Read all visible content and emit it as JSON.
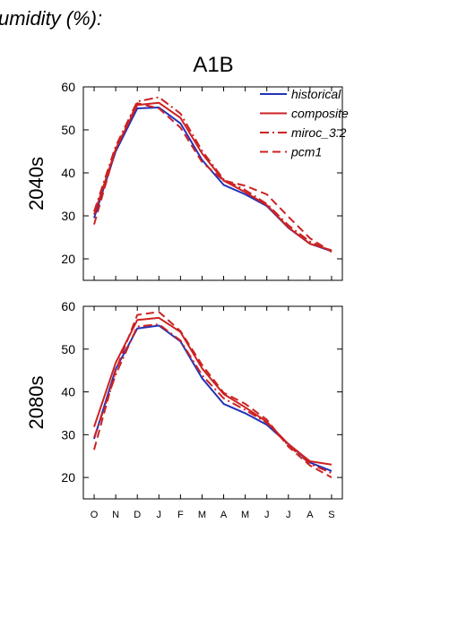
{
  "header": {
    "title_fragment": "umidity (%):"
  },
  "scenario": "A1B",
  "legend": [
    {
      "name": "historical",
      "color": "#2233bb",
      "dash": "solid"
    },
    {
      "name": "composite",
      "color": "#cc2222",
      "dash": "solid"
    },
    {
      "name": "miroc_3.2",
      "color": "#cc2222",
      "dash": "dashdot"
    },
    {
      "name": "pcm1",
      "color": "#cc2222",
      "dash": "dashed"
    }
  ],
  "chart_data": [
    {
      "type": "line",
      "panel_label": "2040s",
      "categories": [
        "O",
        "N",
        "D",
        "J",
        "F",
        "M",
        "A",
        "M",
        "J",
        "J",
        "A",
        "S"
      ],
      "ylim": [
        15,
        60
      ],
      "yticks": [
        20,
        30,
        40,
        50,
        60
      ],
      "series": [
        {
          "name": "historical",
          "values": [
            29.5,
            45.0,
            55.0,
            55.2,
            51.5,
            43.0,
            37.2,
            35.0,
            32.3,
            27.2,
            23.5,
            21.8
          ]
        },
        {
          "name": "composite",
          "values": [
            30.3,
            45.5,
            55.8,
            56.3,
            52.8,
            44.5,
            38.2,
            35.5,
            32.5,
            27.3,
            23.5,
            22.0
          ]
        },
        {
          "name": "miroc_3.2",
          "values": [
            31.0,
            46.2,
            56.6,
            57.6,
            53.8,
            45.1,
            38.5,
            36.0,
            32.8,
            27.8,
            24.0,
            21.8
          ]
        },
        {
          "name": "pcm1",
          "values": [
            28.0,
            45.5,
            56.2,
            55.0,
            50.5,
            42.5,
            38.2,
            37.0,
            35.0,
            29.8,
            24.8,
            21.6
          ]
        }
      ]
    },
    {
      "type": "line",
      "panel_label": "2080s",
      "categories": [
        "O",
        "N",
        "D",
        "J",
        "F",
        "M",
        "A",
        "M",
        "J",
        "J",
        "A",
        "S"
      ],
      "ylim": [
        15,
        60
      ],
      "yticks": [
        20,
        30,
        40,
        50,
        60
      ],
      "series": [
        {
          "name": "historical",
          "values": [
            29.0,
            45.3,
            54.8,
            55.5,
            51.8,
            43.2,
            37.2,
            35.0,
            32.3,
            27.8,
            23.5,
            21.5
          ]
        },
        {
          "name": "composite",
          "values": [
            31.8,
            46.8,
            56.8,
            57.3,
            54.0,
            45.5,
            39.5,
            36.4,
            33.0,
            27.8,
            23.8,
            23.0
          ]
        },
        {
          "name": "miroc_3.2",
          "values": [
            29.3,
            44.0,
            55.3,
            55.8,
            52.0,
            43.9,
            38.5,
            35.8,
            32.8,
            27.5,
            23.2,
            21.0
          ]
        },
        {
          "name": "pcm1",
          "values": [
            26.5,
            45.0,
            58.0,
            58.7,
            54.2,
            46.3,
            39.8,
            37.2,
            33.5,
            27.2,
            22.8,
            20.0
          ]
        }
      ]
    }
  ]
}
